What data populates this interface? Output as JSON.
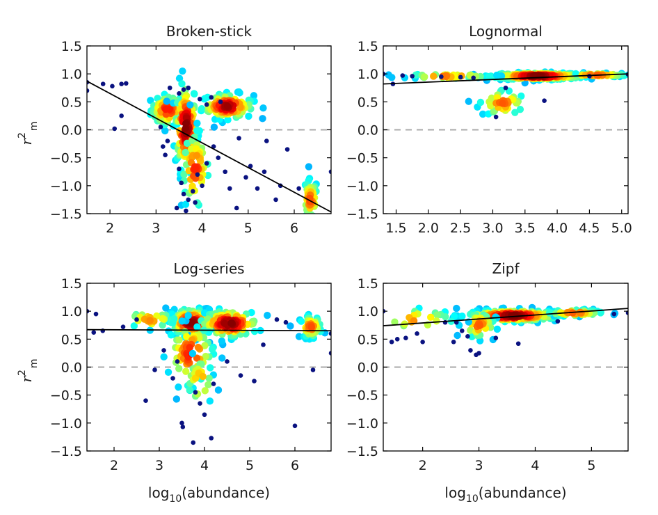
{
  "figure": {
    "xlabel_main": "log",
    "xlabel_sub": "10",
    "xlabel_rest": "(abundance)",
    "ylabel_main": "r",
    "ylabel_sup": "2",
    "ylabel_sub": "m"
  },
  "chart_data": [
    {
      "type": "scatter",
      "title": "Broken-stick",
      "xlim": [
        1.5,
        6.8
      ],
      "ylim": [
        -1.5,
        1.5
      ],
      "xticks": [
        2,
        3,
        4,
        5,
        6
      ],
      "xtick_labels": [
        "2",
        "3",
        "4",
        "5",
        "6"
      ],
      "yticks": [
        1.5,
        1.0,
        0.5,
        0.0,
        -0.5,
        -1.0,
        -1.5
      ],
      "ytick_labels": [
        "1.5",
        "1.0",
        "0.5",
        "0.0",
        "−0.5",
        "−1.0",
        "−1.5"
      ],
      "fit_line": [
        [
          1.5,
          0.87
        ],
        [
          6.8,
          -1.47
        ]
      ],
      "reference_line_y": 0,
      "color_encoding": "point density (blue = low, red = high)",
      "outlier_points": [
        [
          1.5,
          0.85
        ],
        [
          1.5,
          0.7
        ],
        [
          1.85,
          0.82
        ],
        [
          2.05,
          0.78
        ],
        [
          2.25,
          0.82
        ],
        [
          2.35,
          0.83
        ],
        [
          2.1,
          0.02
        ],
        [
          2.25,
          0.25
        ],
        [
          3.3,
          0.75
        ],
        [
          3.5,
          0.65
        ],
        [
          3.6,
          0.72
        ],
        [
          3.7,
          0.75
        ],
        [
          3.95,
          0.55
        ],
        [
          4.1,
          0.45
        ],
        [
          4.2,
          0.58
        ],
        [
          4.4,
          0.5
        ],
        [
          3.1,
          0.05
        ],
        [
          3.15,
          -0.3
        ],
        [
          3.2,
          -0.45
        ],
        [
          3.25,
          -0.2
        ],
        [
          3.5,
          -0.7
        ],
        [
          3.55,
          -0.95
        ],
        [
          3.6,
          -1.15
        ],
        [
          3.7,
          -1.25
        ],
        [
          3.8,
          -1.1
        ],
        [
          3.9,
          -0.8
        ],
        [
          4.0,
          -1.0
        ],
        [
          3.45,
          -1.4
        ],
        [
          3.65,
          -1.45
        ],
        [
          3.85,
          -1.3
        ],
        [
          4.1,
          -0.6
        ],
        [
          4.25,
          -0.3
        ],
        [
          4.35,
          -0.5
        ],
        [
          4.5,
          -0.75
        ],
        [
          4.6,
          -1.05
        ],
        [
          4.75,
          -1.4
        ],
        [
          4.8,
          -0.15
        ],
        [
          4.95,
          -0.85
        ],
        [
          5.05,
          -0.65
        ],
        [
          5.2,
          -1.05
        ],
        [
          5.35,
          -0.75
        ],
        [
          5.4,
          -0.2
        ],
        [
          5.6,
          -1.25
        ],
        [
          5.85,
          -0.35
        ],
        [
          6.1,
          -1.05
        ],
        [
          6.8,
          -0.75
        ],
        [
          5.7,
          -1.0
        ]
      ],
      "dense_clusters": [
        {
          "x": 3.25,
          "y": 0.35,
          "sx": 0.18,
          "sy": 0.14,
          "n": 70
        },
        {
          "x": 3.65,
          "y": 0.05,
          "sx": 0.12,
          "sy": 0.4,
          "n": 120
        },
        {
          "x": 4.55,
          "y": 0.42,
          "sx": 0.28,
          "sy": 0.11,
          "n": 110
        },
        {
          "x": 3.85,
          "y": -0.7,
          "sx": 0.15,
          "sy": 0.35,
          "n": 60
        },
        {
          "x": 6.35,
          "y": -1.25,
          "sx": 0.08,
          "sy": 0.18,
          "n": 45
        }
      ]
    },
    {
      "type": "scatter",
      "title": "Lognormal",
      "xlim": [
        1.3,
        5.1
      ],
      "ylim": [
        -1.5,
        1.5
      ],
      "xticks": [
        1.5,
        2.0,
        2.5,
        3.0,
        3.5,
        4.0,
        4.5,
        5.0
      ],
      "xtick_labels": [
        "1.5",
        "2.0",
        "2.5",
        "3.0",
        "3.5",
        "4.0",
        "4.5",
        "5.0"
      ],
      "yticks": [
        1.5,
        1.0,
        0.5,
        0.0,
        -0.5,
        -1.0,
        -1.5
      ],
      "ytick_labels": [
        "1.5",
        "1.0",
        "0.5",
        "0.0",
        "−0.5",
        "−1.0",
        "−1.5"
      ],
      "fit_line": [
        [
          1.3,
          0.82
        ],
        [
          5.1,
          1.0
        ]
      ],
      "reference_line_y": 0,
      "color_encoding": "point density (blue = low, red = high)",
      "outlier_points": [
        [
          1.3,
          1.0
        ],
        [
          1.45,
          0.82
        ],
        [
          1.6,
          0.97
        ],
        [
          1.75,
          0.96
        ],
        [
          2.2,
          0.95
        ],
        [
          2.5,
          0.94
        ],
        [
          2.7,
          0.93
        ],
        [
          3.2,
          0.75
        ],
        [
          3.8,
          0.52
        ],
        [
          3.05,
          0.23
        ],
        [
          4.5,
          0.96
        ],
        [
          5.1,
          0.99
        ]
      ],
      "dense_clusters": [
        {
          "x": 3.7,
          "y": 0.96,
          "sx": 0.35,
          "sy": 0.03,
          "n": 260
        },
        {
          "x": 3.15,
          "y": 0.48,
          "sx": 0.18,
          "sy": 0.12,
          "n": 40
        },
        {
          "x": 2.3,
          "y": 0.96,
          "sx": 0.35,
          "sy": 0.02,
          "n": 40
        },
        {
          "x": 4.6,
          "y": 0.98,
          "sx": 0.25,
          "sy": 0.015,
          "n": 40
        }
      ]
    },
    {
      "type": "scatter",
      "title": "Log-series",
      "xlim": [
        1.4,
        6.8
      ],
      "ylim": [
        -1.5,
        1.5
      ],
      "xticks": [
        2,
        3,
        4,
        5,
        6
      ],
      "xtick_labels": [
        "2",
        "3",
        "4",
        "5",
        "6"
      ],
      "yticks": [
        1.5,
        1.0,
        0.5,
        0.0,
        -0.5,
        -1.0,
        -1.5
      ],
      "ytick_labels": [
        "1.5",
        "1.0",
        "0.5",
        "0.0",
        "−0.5",
        "−1.0",
        "−1.5"
      ],
      "fit_line": [
        [
          1.4,
          0.67
        ],
        [
          6.8,
          0.65
        ]
      ],
      "reference_line_y": 0,
      "color_encoding": "point density (blue = low, red = high)",
      "outlier_points": [
        [
          1.4,
          1.0
        ],
        [
          1.6,
          0.95
        ],
        [
          1.55,
          0.62
        ],
        [
          1.75,
          0.65
        ],
        [
          2.2,
          0.72
        ],
        [
          2.5,
          0.85
        ],
        [
          2.7,
          -0.6
        ],
        [
          2.9,
          -0.05
        ],
        [
          3.1,
          0.3
        ],
        [
          3.3,
          -0.2
        ],
        [
          3.4,
          0.1
        ],
        [
          3.5,
          -1.0
        ],
        [
          3.52,
          -1.07
        ],
        [
          3.75,
          -1.35
        ],
        [
          3.8,
          -0.45
        ],
        [
          3.9,
          -0.65
        ],
        [
          4.0,
          -0.85
        ],
        [
          4.15,
          -1.27
        ],
        [
          4.2,
          -0.3
        ],
        [
          4.5,
          0.1
        ],
        [
          4.8,
          -0.15
        ],
        [
          5.1,
          -0.25
        ],
        [
          5.3,
          0.4
        ],
        [
          5.6,
          0.85
        ],
        [
          5.8,
          0.8
        ],
        [
          6.0,
          -1.05
        ],
        [
          6.4,
          -0.05
        ],
        [
          6.8,
          0.25
        ],
        [
          6.8,
          0.6
        ]
      ],
      "dense_clusters": [
        {
          "x": 3.7,
          "y": 0.8,
          "sx": 0.22,
          "sy": 0.12,
          "n": 170
        },
        {
          "x": 4.55,
          "y": 0.78,
          "sx": 0.32,
          "sy": 0.12,
          "n": 120
        },
        {
          "x": 6.35,
          "y": 0.72,
          "sx": 0.12,
          "sy": 0.1,
          "n": 45
        },
        {
          "x": 3.7,
          "y": 0.25,
          "sx": 0.25,
          "sy": 0.28,
          "n": 70
        },
        {
          "x": 3.9,
          "y": -0.25,
          "sx": 0.15,
          "sy": 0.22,
          "n": 25
        },
        {
          "x": 2.8,
          "y": 0.85,
          "sx": 0.3,
          "sy": 0.08,
          "n": 25
        }
      ]
    },
    {
      "type": "scatter",
      "title": "Zipf",
      "xlim": [
        1.3,
        5.65
      ],
      "ylim": [
        -1.5,
        1.5
      ],
      "xticks": [
        2,
        3,
        4,
        5
      ],
      "xtick_labels": [
        "2",
        "3",
        "4",
        "5"
      ],
      "yticks": [
        1.5,
        1.0,
        0.5,
        0.0,
        -0.5,
        -1.0,
        -1.5
      ],
      "ytick_labels": [
        "1.5",
        "1.0",
        "0.5",
        "0.0",
        "−0.5",
        "−1.0",
        "−1.5"
      ],
      "fit_line": [
        [
          1.3,
          0.74
        ],
        [
          5.65,
          1.05
        ]
      ],
      "reference_line_y": 0,
      "color_encoding": "point density (blue = low, red = high)",
      "outlier_points": [
        [
          1.3,
          1.0
        ],
        [
          1.45,
          0.45
        ],
        [
          1.55,
          0.5
        ],
        [
          1.7,
          0.52
        ],
        [
          1.9,
          0.6
        ],
        [
          2.0,
          0.45
        ],
        [
          2.4,
          0.8
        ],
        [
          2.55,
          0.45
        ],
        [
          2.6,
          0.8
        ],
        [
          2.7,
          0.65
        ],
        [
          2.8,
          0.55
        ],
        [
          2.85,
          0.3
        ],
        [
          2.95,
          0.22
        ],
        [
          3.0,
          0.25
        ],
        [
          3.3,
          0.52
        ],
        [
          3.7,
          0.42
        ],
        [
          4.4,
          0.82
        ],
        [
          5.4,
          0.95
        ],
        [
          5.65,
          0.97
        ]
      ],
      "dense_clusters": [
        {
          "x": 3.6,
          "y": 0.92,
          "sx": 0.4,
          "sy": 0.05,
          "n": 220
        },
        {
          "x": 3.0,
          "y": 0.75,
          "sx": 0.15,
          "sy": 0.12,
          "n": 40
        },
        {
          "x": 4.7,
          "y": 0.97,
          "sx": 0.25,
          "sy": 0.03,
          "n": 40
        },
        {
          "x": 1.9,
          "y": 0.85,
          "sx": 0.35,
          "sy": 0.1,
          "n": 25
        }
      ]
    }
  ]
}
